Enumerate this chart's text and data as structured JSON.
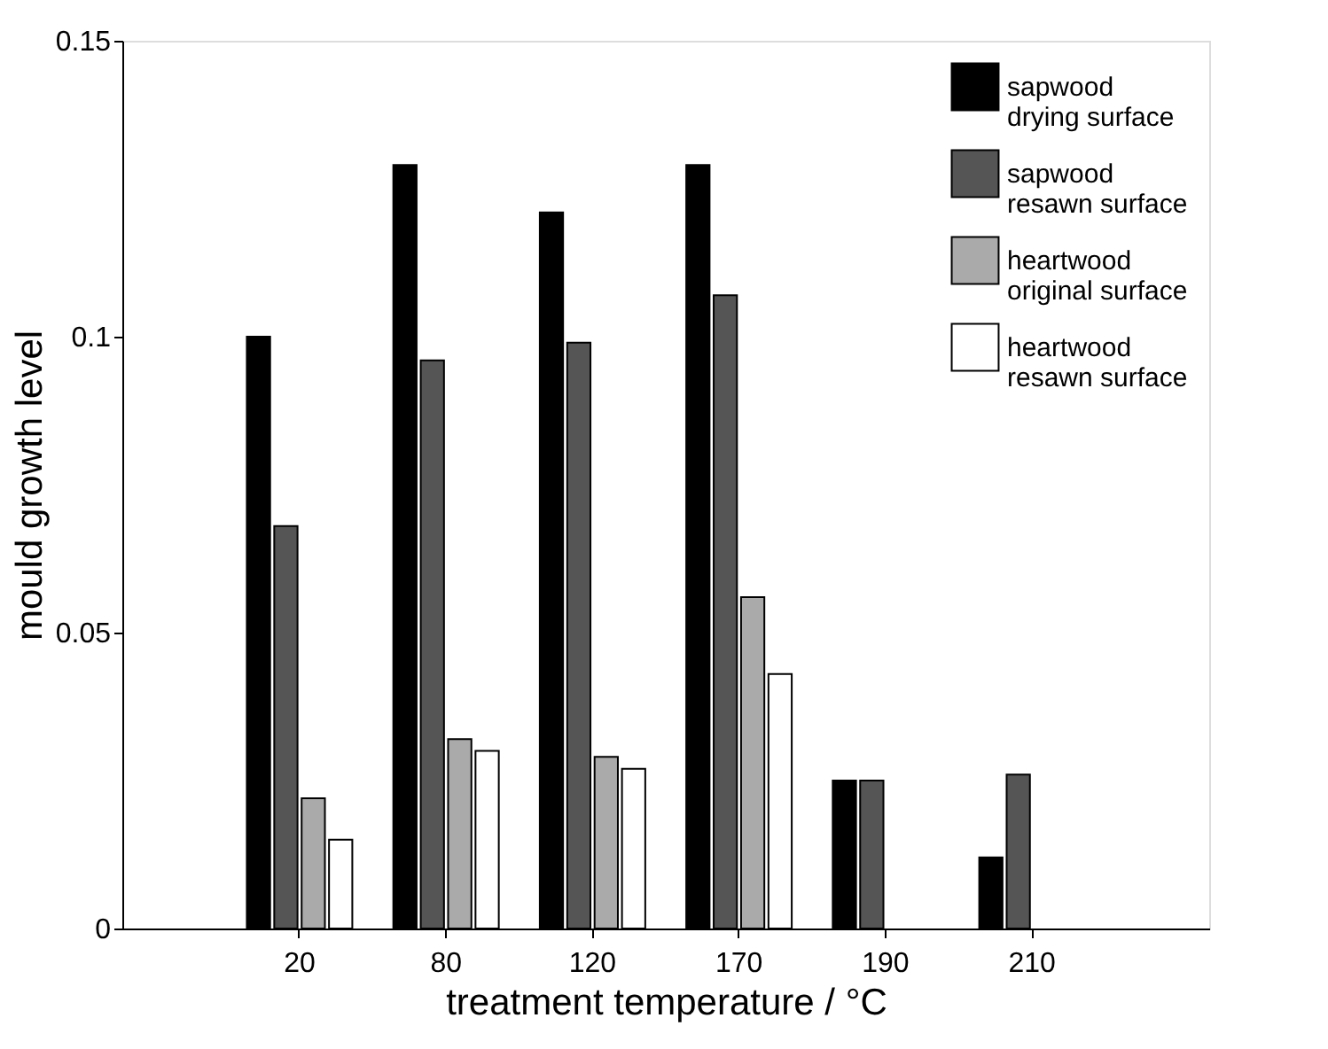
{
  "chart_data": {
    "type": "bar",
    "xlabel": "treatment temperature / °C",
    "ylabel": "mould growth level",
    "categories": [
      "20",
      "80",
      "120",
      "170",
      "190",
      "210"
    ],
    "series": [
      {
        "name": "sapwood drying surface",
        "color": "#000000",
        "values": [
          0.1,
          0.129,
          0.121,
          0.129,
          0.025,
          0.012
        ]
      },
      {
        "name": "sapwood resawn surface",
        "color": "#555555",
        "values": [
          0.068,
          0.096,
          0.099,
          0.107,
          0.025,
          0.026
        ]
      },
      {
        "name": "heartwood original surface",
        "color": "#aaaaaa",
        "values": [
          0.022,
          0.032,
          0.029,
          0.056,
          null,
          null
        ]
      },
      {
        "name": "heartwood resawn surface",
        "color": "#ffffff",
        "values": [
          0.015,
          0.03,
          0.027,
          0.043,
          null,
          null
        ]
      }
    ],
    "ylim": [
      0,
      0.15
    ],
    "yticks": [
      0,
      0.05,
      0.1,
      0.15
    ],
    "grid": false,
    "legend": "top right"
  }
}
